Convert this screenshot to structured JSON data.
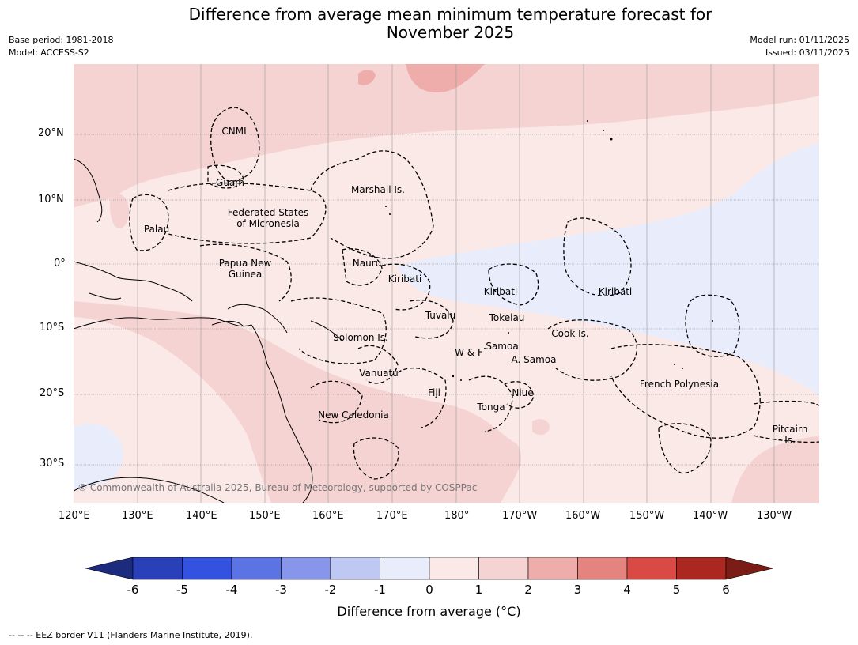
{
  "title_line1": "Difference from average mean minimum temperature forecast for",
  "title_line2": "November 2025",
  "base_period": "Base period: 1981-2018",
  "model": "Model: ACCESS-S2",
  "model_run": "Model run: 01/11/2025",
  "issued": "Issued: 03/11/2025",
  "lat_ticks": [
    "20°N",
    "10°N",
    "0°",
    "10°S",
    "20°S",
    "30°S"
  ],
  "lon_ticks": [
    "120°E",
    "130°E",
    "140°E",
    "150°E",
    "160°E",
    "170°E",
    "180°",
    "170°W",
    "160°W",
    "150°W",
    "140°W",
    "130°W"
  ],
  "labels": {
    "cnmi": "CNMI",
    "guam": "Guam",
    "marshall": "Marshall Is.",
    "fsm1": "Federated States",
    "fsm2": "of Micronesia",
    "palau": "Palau",
    "png1": "Papua New",
    "png2": "Guinea",
    "nauru": "Nauru",
    "kiribati_w": "Kiribati",
    "kiribati_c": "Kiribati",
    "kiribati_e": "Kiribati",
    "tuvalu": "Tuvalu",
    "tokelau": "Tokelau",
    "cook": "Cook Is.",
    "solomon": "Solomon Is.",
    "samoa": "Samoa",
    "wf": "W & F",
    "asamoa": "A. Samoa",
    "vanuatu": "Vanuatu",
    "fiji": "Fiji",
    "niue": "Niue",
    "tonga": "Tonga",
    "newcal": "New Caledonia",
    "frpoly": "French Polynesia",
    "pitcairn1": "Pitcairn",
    "pitcairn2": "Is."
  },
  "copyright": "© Commonwealth of Australia 2025, Bureau of Meteorology, supported by COSPPac",
  "colorbar": {
    "label": "Difference from average (°C)",
    "ticks": [
      "-6",
      "-5",
      "-4",
      "-3",
      "-2",
      "-1",
      "0",
      "1",
      "2",
      "3",
      "4",
      "5",
      "6"
    ],
    "colors": [
      "#1c2b7d",
      "#2a40b8",
      "#3252df",
      "#5c73e3",
      "#8796ea",
      "#bfc8f3",
      "#e8ecfb",
      "#fbe9e8",
      "#f5d3d2",
      "#eeadaa",
      "#e5847f",
      "#d84a43",
      "#ab2820",
      "#7b1c16"
    ]
  },
  "footer": "--  --  -- EEZ border V11 (Flanders Marine Institute, 2019)."
}
